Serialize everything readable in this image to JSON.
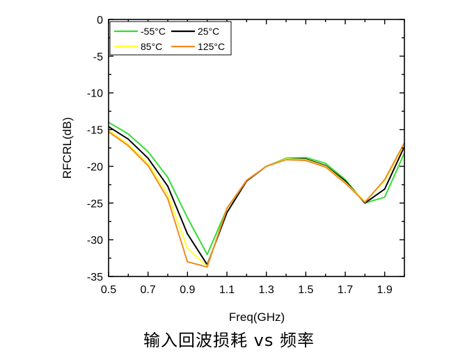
{
  "caption": "输入回波损耗 vs 频率",
  "chart_data": {
    "type": "line",
    "title": "",
    "xlabel": "Freq(GHz)",
    "ylabel": "RFCRL(dB)",
    "xlim": [
      0.5,
      2.0
    ],
    "ylim": [
      -35,
      0
    ],
    "xticks": [
      "0.5",
      "0.7",
      "0.9",
      "1.1",
      "1.3",
      "1.5",
      "1.7",
      "1.9"
    ],
    "xtick_values": [
      0.5,
      0.7,
      0.9,
      1.1,
      1.3,
      1.5,
      1.7,
      1.9
    ],
    "yticks": [
      "0",
      "-5",
      "-10",
      "-15",
      "-20",
      "-25",
      "-30",
      "-35"
    ],
    "ytick_values": [
      0,
      -5,
      -10,
      -15,
      -20,
      -25,
      -30,
      -35
    ],
    "grid": false,
    "legend_position": "top-left",
    "x": [
      0.5,
      0.6,
      0.7,
      0.8,
      0.9,
      1.0,
      1.1,
      1.2,
      1.3,
      1.4,
      1.5,
      1.6,
      1.7,
      1.8,
      1.9,
      2.0
    ],
    "series": [
      {
        "name": "-55°C",
        "color": "#33dd33",
        "values": [
          -14.0,
          -15.6,
          -18.0,
          -21.5,
          -27.0,
          -32.0,
          -25.8,
          -22.0,
          -20.0,
          -18.9,
          -18.8,
          -19.6,
          -21.8,
          -25.0,
          -24.2,
          -18.2
        ]
      },
      {
        "name": "25°C",
        "color": "#000000",
        "values": [
          -14.6,
          -16.3,
          -18.9,
          -22.7,
          -29.2,
          -33.4,
          -26.3,
          -22.0,
          -20.0,
          -19.0,
          -19.0,
          -19.9,
          -22.0,
          -25.0,
          -23.1,
          -17.3
        ]
      },
      {
        "name": "85°C",
        "color": "#ffff33",
        "values": [
          -15.1,
          -17.0,
          -19.6,
          -23.8,
          -31.2,
          -33.6,
          -25.8,
          -21.9,
          -20.0,
          -19.0,
          -19.1,
          -20.0,
          -22.2,
          -24.8,
          -22.0,
          -17.0
        ]
      },
      {
        "name": "125°C",
        "color": "#f08a24",
        "values": [
          -15.3,
          -17.2,
          -19.9,
          -24.4,
          -33.0,
          -33.7,
          -25.7,
          -21.9,
          -20.0,
          -19.1,
          -19.2,
          -20.1,
          -22.3,
          -24.9,
          -21.8,
          -16.8
        ]
      }
    ]
  }
}
